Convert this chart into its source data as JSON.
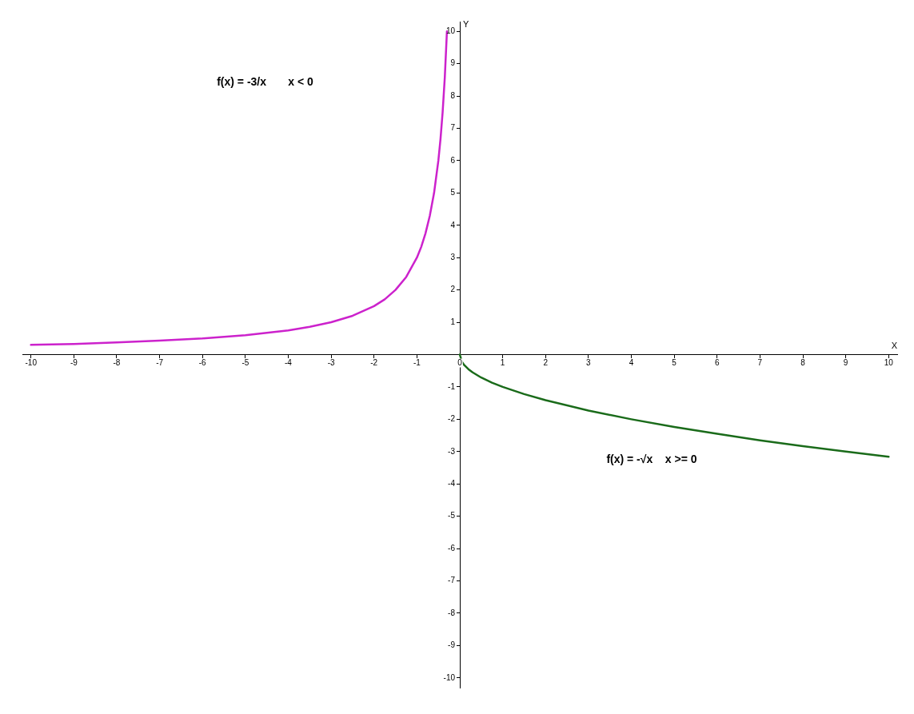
{
  "chart_data": {
    "type": "line",
    "xlabel": "X",
    "ylabel": "Y",
    "xlim": [
      -10.2,
      10.2
    ],
    "ylim": [
      -10.3,
      10.3
    ],
    "xticks": [
      -10,
      -9,
      -8,
      -7,
      -6,
      -5,
      -4,
      -3,
      -2,
      -1,
      0,
      1,
      2,
      3,
      4,
      5,
      6,
      7,
      8,
      9,
      10
    ],
    "yticks": [
      -10,
      -9,
      -8,
      -7,
      -6,
      -5,
      -4,
      -3,
      -2,
      -1,
      {
        "value": 0,
        "label": null
      },
      1,
      2,
      3,
      4,
      5,
      6,
      7,
      8,
      9,
      10
    ],
    "grid": false,
    "legend": false,
    "marker": "none",
    "line_style": "solid",
    "series": [
      {
        "color": "#cc22cc",
        "x": [
          -10,
          -9,
          -8,
          -7,
          -6,
          -5,
          -4,
          -3.5,
          -3,
          -2.5,
          -2,
          -1.75,
          -1.5,
          -1.25,
          -1,
          -0.9,
          -0.8,
          -0.7,
          -0.6,
          -0.5,
          -0.45,
          -0.4,
          -0.35,
          -0.3
        ],
        "values": [
          0.3,
          0.33,
          0.38,
          0.43,
          0.5,
          0.6,
          0.75,
          0.86,
          1,
          1.2,
          1.5,
          1.71,
          2,
          2.4,
          3,
          3.33,
          3.75,
          4.29,
          5,
          6,
          6.67,
          7.5,
          8.57,
          10
        ]
      },
      {
        "color": "#1a6b1a",
        "x": [
          0,
          0.05,
          0.1,
          0.2,
          0.3,
          0.5,
          0.75,
          1,
          1.5,
          2,
          3,
          4,
          5,
          6,
          7,
          8,
          9,
          10
        ],
        "values": [
          0,
          -0.22,
          -0.32,
          -0.45,
          -0.55,
          -0.71,
          -0.87,
          -1,
          -1.22,
          -1.41,
          -1.73,
          -2,
          -2.24,
          -2.45,
          -2.65,
          -2.83,
          -3,
          -3.16
        ]
      }
    ],
    "annotations": [
      "f(x) = -3/x       x < 0",
      "f(x) = -√x    x >= 0"
    ]
  }
}
